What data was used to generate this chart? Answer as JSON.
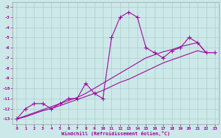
{
  "xlabel": "Windchill (Refroidissement éolien,°C)",
  "x": [
    0,
    1,
    2,
    3,
    4,
    5,
    6,
    7,
    8,
    9,
    10,
    11,
    12,
    13,
    14,
    15,
    16,
    17,
    18,
    19,
    20,
    21,
    22,
    23
  ],
  "y_main": [
    -13,
    -12,
    -11.5,
    -11.5,
    -12,
    -11.5,
    -11,
    -11,
    -9.5,
    -10.5,
    -11,
    -5,
    -3,
    -2.5,
    -3,
    -6,
    -6.5,
    -7,
    -6.3,
    -6,
    -5,
    -5.5,
    -6.5,
    -6.5
  ],
  "y_trend1": [
    -13,
    -12.8,
    -12.5,
    -12.2,
    -12.0,
    -11.7,
    -11.4,
    -11.1,
    -10.8,
    -10.5,
    -10.2,
    -9.8,
    -9.4,
    -9.1,
    -8.7,
    -8.3,
    -7.9,
    -7.5,
    -7.2,
    -6.9,
    -6.6,
    -6.3,
    -6.5,
    -6.5
  ],
  "y_trend2": [
    -13,
    -12.7,
    -12.4,
    -12.1,
    -11.8,
    -11.5,
    -11.2,
    -10.9,
    -10.5,
    -10.0,
    -9.5,
    -9.0,
    -8.5,
    -8.0,
    -7.5,
    -7.0,
    -6.7,
    -6.4,
    -6.2,
    -5.9,
    -5.7,
    -5.5,
    -6.5,
    -6.5
  ],
  "line_color": "#990099",
  "bg_color": "#cce8e8",
  "grid_color": "#aacccc",
  "ylim": [
    -13.5,
    -1.5
  ],
  "yticks": [
    -13,
    -12,
    -11,
    -10,
    -9,
    -8,
    -7,
    -6,
    -5,
    -4,
    -3,
    -2
  ],
  "xticks": [
    0,
    1,
    2,
    3,
    4,
    5,
    6,
    7,
    8,
    9,
    10,
    11,
    12,
    13,
    14,
    15,
    16,
    17,
    18,
    19,
    20,
    21,
    22,
    23
  ],
  "marker": "+",
  "markersize": 4,
  "linewidth": 0.8
}
